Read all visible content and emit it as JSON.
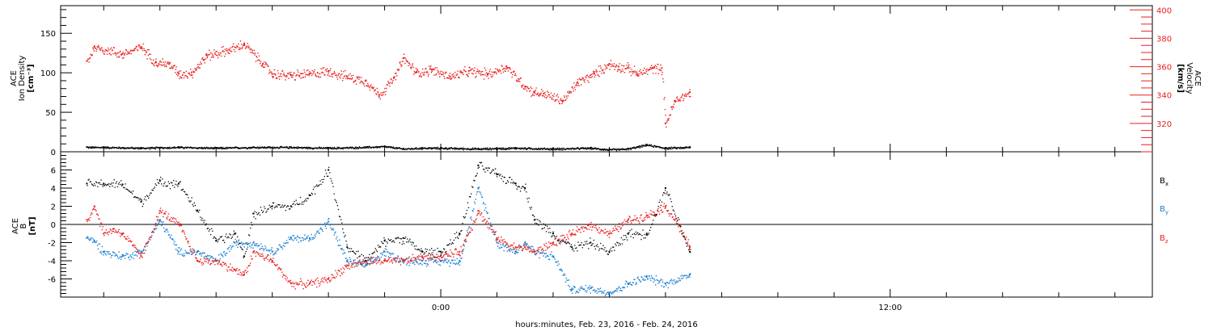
{
  "chart_data": [
    {
      "type": "scatter",
      "panel": "plasma",
      "left_axis": {
        "label_lines": [
          "ACE",
          "Ion Density",
          "[cm⁻³]"
        ],
        "ylim": [
          0,
          185
        ],
        "ticks": [
          0,
          50,
          100,
          150
        ],
        "tick_labels": [
          "0",
          "50",
          "100",
          "150"
        ]
      },
      "right_axis": {
        "label_lines": [
          "ACE",
          "Velocity",
          "[km/s]"
        ],
        "ylim": [
          300,
          403
        ],
        "ticks": [
          320,
          340,
          360,
          380,
          400
        ],
        "tick_labels": [
          "320",
          "340",
          "360",
          "380",
          "400"
        ],
        "color": "#e8201f"
      },
      "series": [
        {
          "key": "density",
          "axis": "left",
          "color": "#000000",
          "x": [
            -18.9,
            -18,
            -16,
            -14,
            -12,
            -10,
            -8,
            -6,
            -4,
            -3,
            -2,
            -1,
            0,
            2,
            4,
            6,
            8,
            9,
            10,
            11,
            12,
            13.3
          ],
          "y": [
            6,
            6,
            5,
            6,
            5,
            6,
            6,
            5,
            6,
            7,
            4,
            5,
            5,
            4,
            5,
            4,
            5,
            3,
            4,
            9,
            5,
            6
          ]
        },
        {
          "key": "velocity",
          "axis": "right",
          "color": "#e8201f",
          "x": [
            -18.9,
            -18.5,
            -17,
            -16,
            -15.2,
            -14.5,
            -14,
            -13.3,
            -12.5,
            -11.3,
            -10.5,
            -9.5,
            -9,
            -8,
            -7,
            -6,
            -5,
            -4,
            -3.3,
            -2.5,
            -2,
            -1.3,
            -0.5,
            0.5,
            1.5,
            2.5,
            3.5,
            4.5,
            5,
            5.5,
            6.5,
            7.3,
            8.2,
            9,
            9.5,
            10,
            10.5,
            11.3,
            11.8,
            12,
            12.5,
            13.3
          ],
          "y": [
            364,
            374,
            369,
            374,
            363,
            362,
            355,
            356,
            368,
            372,
            376,
            362,
            355,
            354,
            355,
            357,
            353,
            350,
            340,
            352,
            366,
            356,
            358,
            353,
            357,
            355,
            360,
            346,
            342,
            341,
            336,
            349,
            355,
            362,
            360,
            359,
            355,
            359,
            359,
            320,
            336,
            342
          ]
        }
      ]
    },
    {
      "type": "scatter",
      "panel": "magnetic",
      "left_axis": {
        "label_lines": [
          "ACE",
          "B",
          "[nT]"
        ],
        "ylim": [
          -8,
          8
        ],
        "ticks": [
          -6,
          -4,
          -2,
          0,
          2,
          4,
          6
        ],
        "tick_labels": [
          "-6",
          "-4",
          "-2",
          "0",
          "2",
          "4",
          "6"
        ]
      },
      "x_axis": {
        "label": "hours:minutes, Feb. 23, 2016 - Feb. 24, 2016",
        "xlim": [
          -20.3,
          38
        ],
        "ticks": [
          0,
          24
        ],
        "tick_labels": [
          "0:00",
          "12:00"
        ]
      },
      "legend_position": "right",
      "series": [
        {
          "key": "Bx",
          "legend": "B",
          "subscript": "x",
          "color": "#000000",
          "x": [
            -18.9,
            -18,
            -17,
            -16,
            -15,
            -14,
            -13,
            -12,
            -11,
            -10.5,
            -10,
            -9,
            -8,
            -7,
            -6,
            -5,
            -4,
            -3,
            -2,
            -1,
            0,
            1,
            2,
            3,
            4,
            4.5,
            5,
            6,
            7,
            8,
            9,
            10,
            11,
            12,
            13.3
          ],
          "y": [
            4.5,
            4.5,
            4.4,
            2.5,
            4.8,
            4.5,
            1.5,
            -1.8,
            -1,
            -3.5,
            1.2,
            2,
            2,
            3.2,
            6,
            -2.5,
            -4,
            -1.8,
            -1.5,
            -3,
            -3,
            -1,
            6.5,
            5.5,
            4.5,
            4,
            0.5,
            -1,
            -2.5,
            -2,
            -3,
            -1,
            -1,
            4,
            -3
          ]
        },
        {
          "key": "By",
          "legend": "B",
          "subscript": "y",
          "color": "#1a7fd0",
          "x": [
            -18.9,
            -18.5,
            -18,
            -17,
            -16,
            -15,
            -14,
            -13,
            -12,
            -11,
            -10,
            -9,
            -8,
            -7,
            -6,
            -5,
            -4,
            -3,
            -2,
            -1,
            0,
            1,
            2,
            3,
            4,
            4.5,
            5,
            6,
            7,
            8,
            9,
            10,
            11,
            12,
            13.3
          ],
          "y": [
            -1.5,
            -1.8,
            -3,
            -3.5,
            -3,
            0.5,
            -3,
            -3,
            -4,
            -2,
            -2,
            -3,
            -1.5,
            -1.5,
            0.3,
            -4,
            -4.5,
            -3,
            -4,
            -4,
            -4,
            -4,
            4,
            -2,
            -3,
            -2,
            -3,
            -3.5,
            -7.2,
            -7,
            -7.5,
            -6.5,
            -5.8,
            -6.5,
            -5.5
          ]
        },
        {
          "key": "Bz",
          "legend": "B",
          "subscript": "z",
          "color": "#e8201f",
          "x": [
            -18.9,
            -18.5,
            -18,
            -17.5,
            -17,
            -16,
            -15,
            -14,
            -13,
            -12,
            -11,
            -10.5,
            -10,
            -9,
            -8,
            -7,
            -6,
            -5,
            -4,
            -3,
            -2,
            -1,
            0,
            1,
            2,
            3,
            4,
            4.5,
            5,
            6,
            7,
            8,
            9,
            10,
            11,
            12,
            12.5,
            13.3
          ],
          "y": [
            0.5,
            2,
            -1,
            -0.5,
            -1,
            -3.5,
            1.5,
            0,
            -4,
            -4,
            -5,
            -5.5,
            -3,
            -4,
            -6.5,
            -6.5,
            -6,
            -4.5,
            -4,
            -4,
            -4,
            -3.5,
            -3.5,
            -3,
            1.5,
            -1.5,
            -2.5,
            -2.5,
            -3,
            -2,
            -1,
            0,
            -1,
            0.5,
            1,
            2,
            0.5,
            -2.5
          ]
        }
      ]
    }
  ]
}
